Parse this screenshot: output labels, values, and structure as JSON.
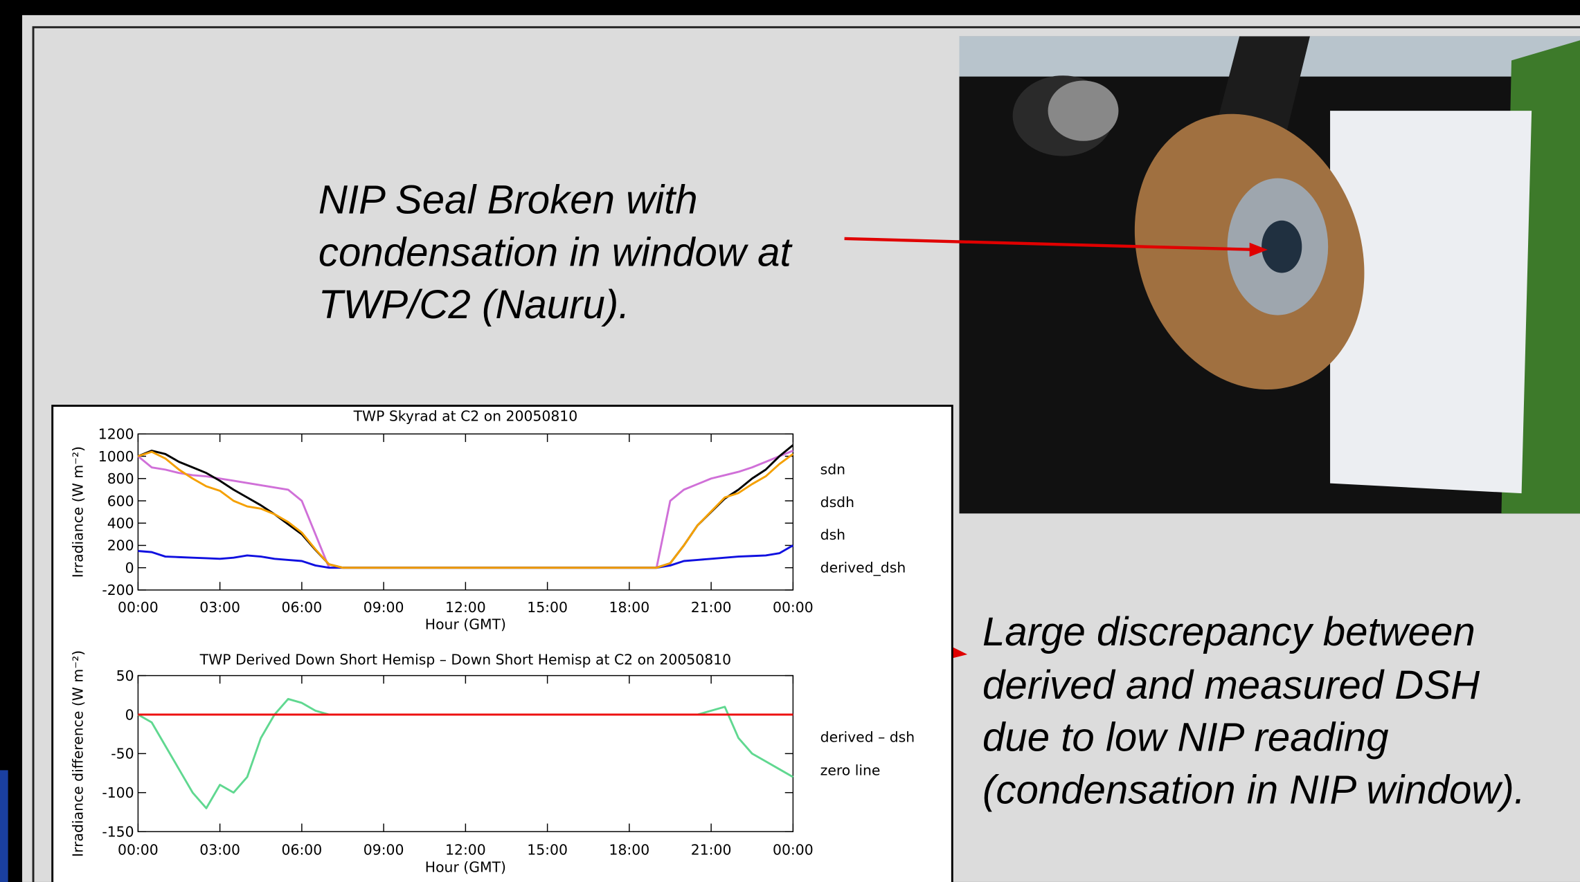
{
  "slide": {
    "caption_top": [
      "NIP Seal Broken with",
      "condensation in window at",
      "TWP/C2 (Nauru)."
    ],
    "caption_right": [
      "Large discrepancy between",
      "derived and measured DSH",
      "due to low NIP reading",
      "(condensation in NIP window)."
    ]
  },
  "chart_data": [
    {
      "type": "line",
      "title": "TWP Skyrad at C2 on 20050810",
      "x_label": "Hour (GMT)",
      "y_label": "Irradiance (W m⁻²)",
      "x": [
        0,
        0.5,
        1,
        1.5,
        2,
        2.5,
        3,
        3.5,
        4,
        4.5,
        5,
        5.5,
        6,
        6.5,
        7,
        7.5,
        8,
        8.5,
        9,
        9.5,
        10,
        10.5,
        11,
        11.5,
        12,
        12.5,
        13,
        13.5,
        14,
        14.5,
        15,
        15.5,
        16,
        16.5,
        17,
        17.5,
        18,
        18.5,
        19,
        19.5,
        20,
        20.5,
        21,
        21.5,
        22,
        22.5,
        23,
        23.5,
        24
      ],
      "xlim": [
        0,
        24
      ],
      "xticks": [
        {
          "value": 0,
          "label": "00:00"
        },
        {
          "value": 3,
          "label": "03:00"
        },
        {
          "value": 6,
          "label": "06:00"
        },
        {
          "value": 9,
          "label": "09:00"
        },
        {
          "value": 12,
          "label": "12:00"
        },
        {
          "value": 15,
          "label": "15:00"
        },
        {
          "value": 18,
          "label": "18:00"
        },
        {
          "value": 21,
          "label": "21:00"
        },
        {
          "value": 24,
          "label": "00:00"
        }
      ],
      "ylim": [
        -200,
        1200
      ],
      "yticks": [
        -200,
        0,
        200,
        400,
        600,
        800,
        1000,
        1200
      ],
      "series": [
        {
          "name": "sdn",
          "color": "#d070d8",
          "values": [
            1000,
            900,
            880,
            850,
            830,
            820,
            800,
            780,
            760,
            740,
            720,
            700,
            600,
            300,
            0,
            0,
            0,
            0,
            0,
            0,
            0,
            0,
            0,
            0,
            0,
            0,
            0,
            0,
            0,
            0,
            0,
            0,
            0,
            0,
            0,
            0,
            0,
            0,
            0,
            600,
            700,
            750,
            800,
            830,
            860,
            900,
            950,
            1000,
            1050
          ]
        },
        {
          "name": "dsdh",
          "color": "#1010e0",
          "values": [
            150,
            140,
            100,
            95,
            90,
            85,
            80,
            90,
            110,
            100,
            80,
            70,
            60,
            20,
            0,
            0,
            0,
            0,
            0,
            0,
            0,
            0,
            0,
            0,
            0,
            0,
            0,
            0,
            0,
            0,
            0,
            0,
            0,
            0,
            0,
            0,
            0,
            0,
            0,
            20,
            60,
            70,
            80,
            90,
            100,
            105,
            110,
            130,
            200
          ]
        },
        {
          "name": "dsh",
          "color": "#000000",
          "values": [
            1000,
            1050,
            1020,
            950,
            900,
            850,
            780,
            700,
            630,
            560,
            480,
            390,
            300,
            160,
            30,
            0,
            0,
            0,
            0,
            0,
            0,
            0,
            0,
            0,
            0,
            0,
            0,
            0,
            0,
            0,
            0,
            0,
            0,
            0,
            0,
            0,
            0,
            0,
            0,
            40,
            200,
            380,
            500,
            620,
            700,
            800,
            880,
            1000,
            1100
          ]
        },
        {
          "name": "derived_dsh",
          "color": "#f5a000",
          "values": [
            1000,
            1040,
            980,
            880,
            800,
            730,
            690,
            600,
            550,
            530,
            480,
            410,
            315,
            165,
            30,
            0,
            0,
            0,
            0,
            0,
            0,
            0,
            0,
            0,
            0,
            0,
            0,
            0,
            0,
            0,
            0,
            0,
            0,
            0,
            0,
            0,
            0,
            0,
            0,
            40,
            200,
            380,
            505,
            630,
            670,
            750,
            820,
            930,
            1020
          ]
        }
      ]
    },
    {
      "type": "line",
      "title": "TWP Derived Down Short Hemisp – Down Short Hemisp at C2 on 20050810",
      "x_label": "Hour (GMT)",
      "y_label": "Irradiance difference (W m⁻²)",
      "x": [
        0,
        0.5,
        1,
        1.5,
        2,
        2.5,
        3,
        3.5,
        4,
        4.5,
        5,
        5.5,
        6,
        6.5,
        7,
        7.5,
        8,
        8.5,
        9,
        9.5,
        10,
        10.5,
        11,
        11.5,
        12,
        12.5,
        13,
        13.5,
        14,
        14.5,
        15,
        15.5,
        16,
        16.5,
        17,
        17.5,
        18,
        18.5,
        19,
        19.5,
        20,
        20.5,
        21,
        21.5,
        22,
        22.5,
        23,
        23.5,
        24
      ],
      "xlim": [
        0,
        24
      ],
      "xticks": [
        {
          "value": 0,
          "label": "00:00"
        },
        {
          "value": 3,
          "label": "03:00"
        },
        {
          "value": 6,
          "label": "06:00"
        },
        {
          "value": 9,
          "label": "09:00"
        },
        {
          "value": 12,
          "label": "12:00"
        },
        {
          "value": 15,
          "label": "15:00"
        },
        {
          "value": 18,
          "label": "18:00"
        },
        {
          "value": 21,
          "label": "21:00"
        },
        {
          "value": 24,
          "label": "00:00"
        }
      ],
      "ylim": [
        -150,
        50
      ],
      "yticks": [
        -150,
        -100,
        -50,
        0,
        50
      ],
      "series": [
        {
          "name": "derived – dsh",
          "color": "#60d890",
          "values": [
            0,
            -10,
            -40,
            -70,
            -100,
            -120,
            -90,
            -100,
            -80,
            -30,
            0,
            20,
            15,
            5,
            0,
            0,
            0,
            0,
            0,
            0,
            0,
            0,
            0,
            0,
            0,
            0,
            0,
            0,
            0,
            0,
            0,
            0,
            0,
            0,
            0,
            0,
            0,
            0,
            0,
            0,
            0,
            0,
            5,
            10,
            -30,
            -50,
            -60,
            -70,
            -80
          ]
        },
        {
          "name": "zero line",
          "color": "#ee1010",
          "values": [
            0,
            0,
            0,
            0,
            0,
            0,
            0,
            0,
            0,
            0,
            0,
            0,
            0,
            0,
            0,
            0,
            0,
            0,
            0,
            0,
            0,
            0,
            0,
            0,
            0,
            0,
            0,
            0,
            0,
            0,
            0,
            0,
            0,
            0,
            0,
            0,
            0,
            0,
            0,
            0,
            0,
            0,
            0,
            0,
            0,
            0,
            0,
            0,
            0
          ]
        }
      ]
    }
  ]
}
